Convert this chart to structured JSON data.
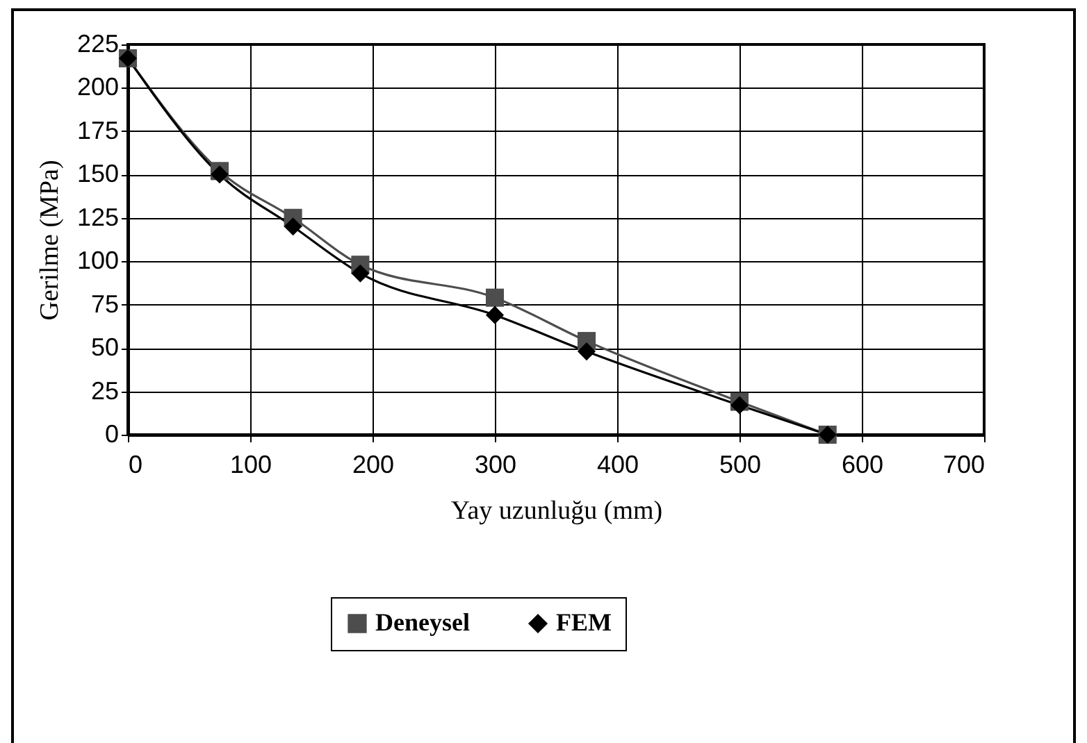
{
  "chart_data": {
    "type": "line",
    "xlabel": "Yay uzunluğu (mm)",
    "ylabel": "Gerilme (MPa)",
    "x": [
      0,
      75,
      135,
      190,
      300,
      375,
      500,
      572
    ],
    "series": [
      {
        "name": "Deneysel",
        "color": "#4d4d4d",
        "marker": "square",
        "values": [
          217,
          152,
          125,
          98,
          79,
          54,
          19,
          0
        ]
      },
      {
        "name": "FEM",
        "color": "#000000",
        "marker": "diamond",
        "values": [
          217,
          150,
          120,
          93,
          69,
          48,
          17,
          0
        ]
      }
    ],
    "xlim": [
      0,
      700
    ],
    "xticks": [
      0,
      100,
      200,
      300,
      400,
      500,
      600,
      700
    ],
    "ylim": [
      0,
      225
    ],
    "yticks": [
      0,
      25,
      50,
      75,
      100,
      125,
      150,
      175,
      200,
      225
    ],
    "grid": true,
    "legend": "bottom",
    "line_style": "solid"
  }
}
